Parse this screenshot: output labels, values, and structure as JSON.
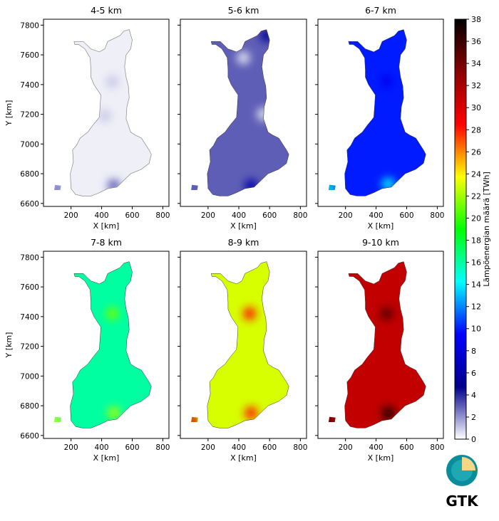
{
  "chart_data": {
    "type": "heatmap",
    "colorbar": {
      "label": "Lämpöenergian määrä [TWh]",
      "min": 0,
      "max": 38,
      "ticks": [
        0,
        2,
        4,
        6,
        8,
        10,
        12,
        14,
        16,
        18,
        20,
        22,
        24,
        26,
        28,
        30,
        32,
        34,
        36,
        38
      ],
      "colormap": [
        "#ffffff",
        "#00008b",
        "#0000ff",
        "#00ffff",
        "#00ff00",
        "#ffff00",
        "#ff0000",
        "#8b0000",
        "#000000"
      ]
    },
    "panels": [
      {
        "title": "4-5 km",
        "xlabel": "X [km]",
        "ylabel": "Y [km]",
        "xlim": [
          20,
          840
        ],
        "ylim": [
          6580,
          7840
        ],
        "mean_value": 0.3,
        "typical_range": [
          0,
          2
        ],
        "hotspots": [
          {
            "x": 480,
            "y": 6720,
            "value": 3
          },
          {
            "x": 110,
            "y": 6700,
            "value": 3
          },
          {
            "x": 470,
            "y": 7420,
            "value": 1
          },
          {
            "x": 420,
            "y": 7190,
            "value": 1
          }
        ]
      },
      {
        "title": "5-6 km",
        "xlabel": "X [km]",
        "ylabel": "",
        "xlim": [
          20,
          840
        ],
        "ylim": [
          6580,
          7840
        ],
        "mean_value": 3,
        "typical_range": [
          0,
          6
        ],
        "hotspots": [
          {
            "x": 480,
            "y": 6720,
            "value": 6
          },
          {
            "x": 580,
            "y": 7730,
            "value": 5
          },
          {
            "x": 560,
            "y": 7200,
            "value": 0.5
          },
          {
            "x": 430,
            "y": 7580,
            "value": 0.5
          }
        ]
      },
      {
        "title": "6-7 km",
        "xlabel": "X [km]",
        "ylabel": "",
        "xlim": [
          20,
          840
        ],
        "ylim": [
          6580,
          7840
        ],
        "mean_value": 10,
        "typical_range": [
          7,
          14
        ],
        "hotspots": [
          {
            "x": 480,
            "y": 6730,
            "value": 14
          },
          {
            "x": 100,
            "y": 6700,
            "value": 15
          },
          {
            "x": 470,
            "y": 7420,
            "value": 9
          }
        ]
      },
      {
        "title": "7-8 km",
        "xlabel": "X [km]",
        "ylabel": "Y [km]",
        "xlim": [
          20,
          840
        ],
        "ylim": [
          6580,
          7840
        ],
        "mean_value": 16,
        "typical_range": [
          13,
          22
        ],
        "hotspots": [
          {
            "x": 480,
            "y": 6750,
            "value": 22
          },
          {
            "x": 100,
            "y": 6700,
            "value": 23
          },
          {
            "x": 470,
            "y": 7420,
            "value": 21
          }
        ]
      },
      {
        "title": "8-9 km",
        "xlabel": "X [km]",
        "ylabel": "",
        "xlim": [
          20,
          840
        ],
        "ylim": [
          6580,
          7840
        ],
        "mean_value": 23,
        "typical_range": [
          20,
          29
        ],
        "hotspots": [
          {
            "x": 480,
            "y": 6750,
            "value": 28
          },
          {
            "x": 100,
            "y": 6700,
            "value": 30
          },
          {
            "x": 470,
            "y": 7420,
            "value": 28
          }
        ]
      },
      {
        "title": "9-10 km",
        "xlabel": "X [km]",
        "ylabel": "",
        "xlim": [
          20,
          840
        ],
        "ylim": [
          6580,
          7840
        ],
        "mean_value": 31,
        "typical_range": [
          28,
          37
        ],
        "hotspots": [
          {
            "x": 480,
            "y": 6750,
            "value": 37
          },
          {
            "x": 90,
            "y": 6700,
            "value": 35
          },
          {
            "x": 470,
            "y": 7420,
            "value": 35
          }
        ]
      }
    ],
    "x_ticks": [
      200,
      400,
      600,
      800
    ],
    "y_ticks": [
      6600,
      6800,
      7000,
      7200,
      7400,
      7600,
      7800
    ],
    "outline": {
      "name": "Finland",
      "polygon": [
        [
          275,
          6650
        ],
        [
          230,
          6660
        ],
        [
          200,
          6700
        ],
        [
          195,
          6800
        ],
        [
          215,
          6880
        ],
        [
          210,
          6960
        ],
        [
          235,
          6990
        ],
        [
          260,
          7040
        ],
        [
          310,
          7080
        ],
        [
          345,
          7130
        ],
        [
          370,
          7160
        ],
        [
          385,
          7180
        ],
        [
          390,
          7250
        ],
        [
          395,
          7330
        ],
        [
          350,
          7400
        ],
        [
          330,
          7450
        ],
        [
          330,
          7500
        ],
        [
          325,
          7580
        ],
        [
          290,
          7640
        ],
        [
          250,
          7670
        ],
        [
          225,
          7670
        ],
        [
          220,
          7690
        ],
        [
          280,
          7690
        ],
        [
          330,
          7640
        ],
        [
          385,
          7620
        ],
        [
          420,
          7640
        ],
        [
          440,
          7690
        ],
        [
          520,
          7730
        ],
        [
          545,
          7760
        ],
        [
          580,
          7770
        ],
        [
          600,
          7700
        ],
        [
          590,
          7640
        ],
        [
          560,
          7600
        ],
        [
          550,
          7520
        ],
        [
          560,
          7450
        ],
        [
          575,
          7390
        ],
        [
          580,
          7310
        ],
        [
          565,
          7250
        ],
        [
          560,
          7170
        ],
        [
          590,
          7080
        ],
        [
          620,
          7060
        ],
        [
          660,
          7040
        ],
        [
          710,
          6960
        ],
        [
          725,
          6930
        ],
        [
          710,
          6870
        ],
        [
          660,
          6830
        ],
        [
          590,
          6800
        ],
        [
          550,
          6760
        ],
        [
          500,
          6710
        ],
        [
          440,
          6700
        ],
        [
          380,
          6670
        ],
        [
          330,
          6650
        ]
      ],
      "islands": [
        [
          [
            90,
            6690
          ],
          [
            130,
            6690
          ],
          [
            135,
            6720
          ],
          [
            95,
            6725
          ]
        ]
      ]
    }
  },
  "logo": {
    "text": "GTK",
    "colors": {
      "ring": "#0a8d9a",
      "inner": "#1ea8b3",
      "highlight": "#f5d787",
      "text": "#6e6e6e"
    }
  }
}
